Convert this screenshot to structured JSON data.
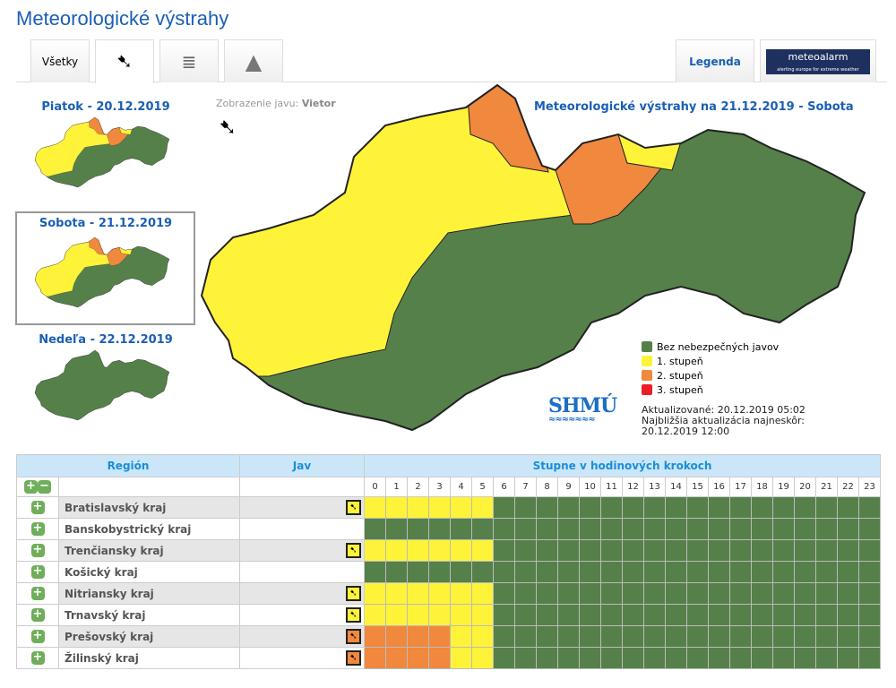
{
  "title": "Meteorologické výstrahy",
  "tabs": [
    {
      "label": "Všetky"
    },
    {
      "icon": "wind-icon"
    },
    {
      "icon": "fog-icon"
    },
    {
      "icon": "mountain-wind-icon"
    }
  ],
  "legend_tab": "Legenda",
  "meteoalarm": {
    "brand": "meteoalarm",
    "tagline": "alerting europe for extreme weather"
  },
  "days": [
    {
      "label": "Piatok - 20.12.2019"
    },
    {
      "label": "Sobota - 21.12.2019"
    },
    {
      "label": "Nedeľa - 22.12.2019"
    }
  ],
  "phenomenon": {
    "prefix": "Zobrazenie javu:",
    "value": "Vietor"
  },
  "map_title": "Meteorologické výstrahy na 21.12.2019 - Sobota",
  "colors": {
    "none": "#55804a",
    "level1": "#fff33a",
    "level2": "#f0883e",
    "level3": "#ee1c25"
  },
  "legend": [
    {
      "label": "Bez nebezpečných javov",
      "color": "#55804a"
    },
    {
      "label": "1. stupeň",
      "color": "#fff33a"
    },
    {
      "label": "2. stupeň",
      "color": "#f0883e"
    },
    {
      "label": "3. stupeň",
      "color": "#ee1c25"
    }
  ],
  "logo": "SHMÚ",
  "updated": "Aktualizované: 20.12.2019 05:02",
  "next_update": "Najbližšia aktualizácia najneskôr: 20.12.2019 12:00",
  "table": {
    "headers": {
      "region": "Región",
      "jav": "Jav",
      "hours": "Stupne v hodinových krokoch"
    },
    "rows": [
      {
        "region": "Bratislavský kraj",
        "jav": 1,
        "levels": [
          1,
          1,
          1,
          1,
          1,
          1,
          0,
          0,
          0,
          0,
          0,
          0,
          0,
          0,
          0,
          0,
          0,
          0,
          0,
          0,
          0,
          0,
          0,
          0
        ]
      },
      {
        "region": "Banskobystrický kraj",
        "jav": 0,
        "levels": [
          0,
          0,
          0,
          0,
          0,
          0,
          0,
          0,
          0,
          0,
          0,
          0,
          0,
          0,
          0,
          0,
          0,
          0,
          0,
          0,
          0,
          0,
          0,
          0
        ]
      },
      {
        "region": "Trenčiansky kraj",
        "jav": 1,
        "levels": [
          1,
          1,
          1,
          1,
          1,
          1,
          0,
          0,
          0,
          0,
          0,
          0,
          0,
          0,
          0,
          0,
          0,
          0,
          0,
          0,
          0,
          0,
          0,
          0
        ]
      },
      {
        "region": "Košický kraj",
        "jav": 0,
        "levels": [
          0,
          0,
          0,
          0,
          0,
          0,
          0,
          0,
          0,
          0,
          0,
          0,
          0,
          0,
          0,
          0,
          0,
          0,
          0,
          0,
          0,
          0,
          0,
          0
        ]
      },
      {
        "region": "Nitriansky kraj",
        "jav": 1,
        "levels": [
          1,
          1,
          1,
          1,
          1,
          1,
          0,
          0,
          0,
          0,
          0,
          0,
          0,
          0,
          0,
          0,
          0,
          0,
          0,
          0,
          0,
          0,
          0,
          0
        ]
      },
      {
        "region": "Trnavský kraj",
        "jav": 1,
        "levels": [
          1,
          1,
          1,
          1,
          1,
          1,
          0,
          0,
          0,
          0,
          0,
          0,
          0,
          0,
          0,
          0,
          0,
          0,
          0,
          0,
          0,
          0,
          0,
          0
        ]
      },
      {
        "region": "Prešovský kraj",
        "jav": 2,
        "levels": [
          2,
          2,
          2,
          2,
          1,
          1,
          0,
          0,
          0,
          0,
          0,
          0,
          0,
          0,
          0,
          0,
          0,
          0,
          0,
          0,
          0,
          0,
          0,
          0
        ]
      },
      {
        "region": "Žilinský kraj",
        "jav": 2,
        "levels": [
          2,
          2,
          2,
          2,
          1,
          1,
          0,
          0,
          0,
          0,
          0,
          0,
          0,
          0,
          0,
          0,
          0,
          0,
          0,
          0,
          0,
          0,
          0,
          0
        ]
      }
    ]
  }
}
